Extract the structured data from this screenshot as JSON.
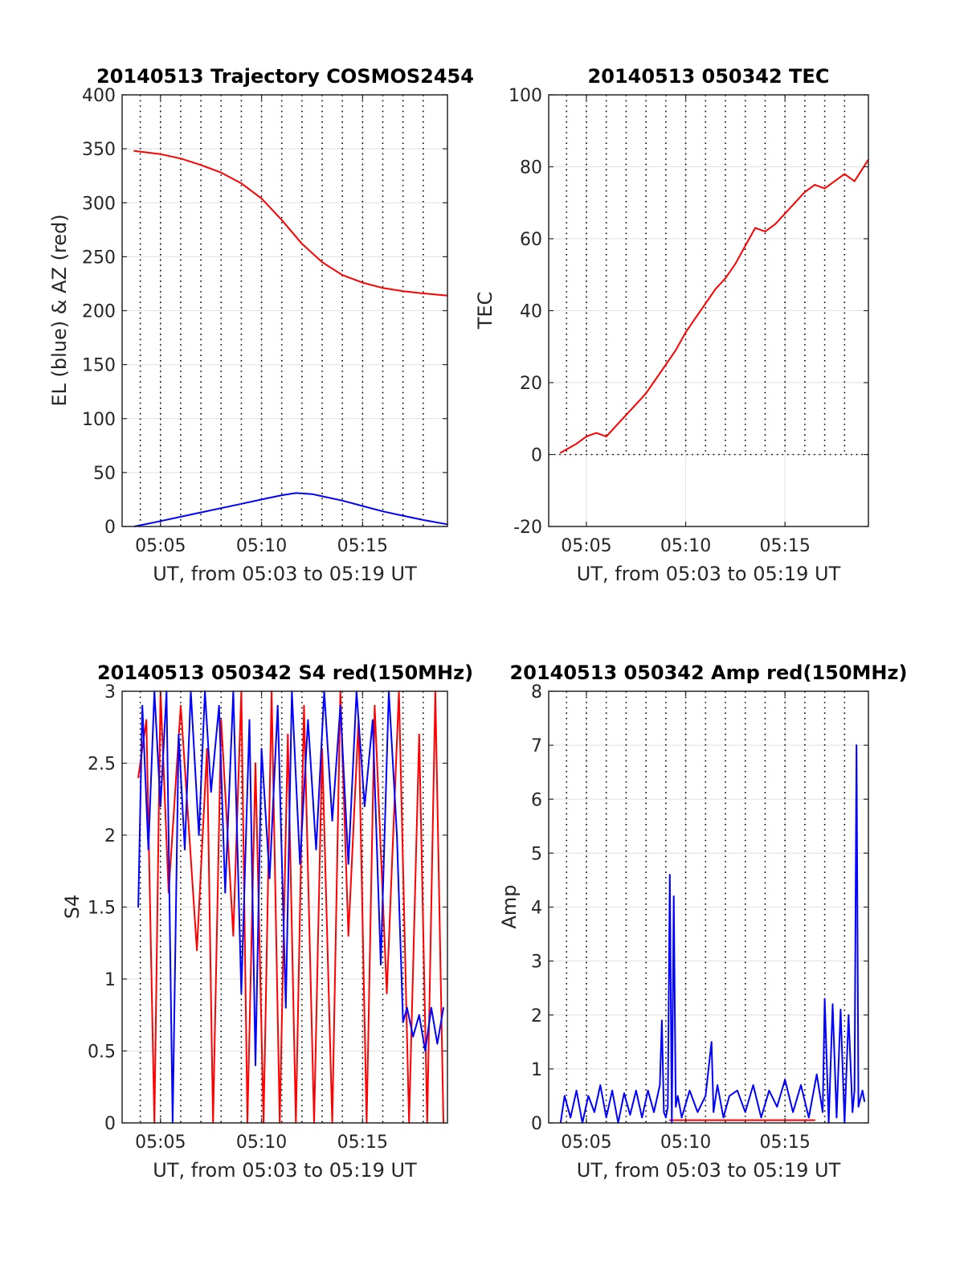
{
  "colors": {
    "el": "#0000ff",
    "az": "#ff0000",
    "tec": "#ff0000",
    "s4_red": "#ff0000",
    "s4_blue": "#0000ff",
    "amp_red": "#ff0000",
    "amp_blue": "#0000ff",
    "grid": "#e0e0e0",
    "axis": "#262626"
  },
  "chart_data": [
    {
      "type": "line",
      "title": "20140513 Trajectory COSMOS2454",
      "xlabel": "UT, from 05:03 to 05:19 UT",
      "ylabel": "EL (blue) & AZ (red)",
      "xlim": [
        3.1,
        19.2
      ],
      "ylim": [
        0,
        400
      ],
      "x_ticks": [
        5,
        10,
        15
      ],
      "x_tick_labels": [
        "05:05",
        "05:10",
        "05:15"
      ],
      "y_ticks": [
        0,
        50,
        100,
        150,
        200,
        250,
        300,
        350,
        400
      ],
      "y_tick_labels": [
        "0",
        "50",
        "100",
        "150",
        "200",
        "250",
        "300",
        "350",
        "400"
      ],
      "minute_grid": [
        4,
        5,
        6,
        7,
        8,
        9,
        10,
        11,
        12,
        13,
        14,
        15,
        16,
        17,
        18
      ],
      "grid": true,
      "series": [
        {
          "color_key": "az",
          "x": [
            3.7,
            5,
            6,
            7,
            8,
            9,
            10,
            11,
            12,
            13,
            14,
            15,
            16,
            17,
            18,
            19.2
          ],
          "values": [
            348,
            345,
            341,
            335,
            328,
            318,
            304,
            284,
            262,
            245,
            233,
            226,
            221,
            218,
            216,
            214
          ]
        },
        {
          "color_key": "el",
          "x": [
            3.7,
            5,
            6,
            7,
            8,
            9,
            10,
            11,
            11.7,
            12.5,
            13,
            14,
            15,
            16,
            17,
            18,
            19.2
          ],
          "values": [
            0,
            5,
            9,
            13,
            17,
            21,
            25,
            29,
            31,
            30,
            28,
            24,
            19,
            14,
            10,
            6,
            2
          ]
        }
      ]
    },
    {
      "type": "line",
      "title": "20140513 050342 TEC",
      "xlabel": "UT, from 05:03 to 05:19 UT",
      "ylabel": "TEC",
      "xlim": [
        3.1,
        19.2
      ],
      "ylim": [
        -20,
        100
      ],
      "x_ticks": [
        5,
        10,
        15
      ],
      "x_tick_labels": [
        "05:05",
        "05:10",
        "05:15"
      ],
      "y_ticks": [
        -20,
        0,
        20,
        40,
        60,
        80,
        100
      ],
      "y_tick_labels": [
        "-20",
        "0",
        "20",
        "40",
        "60",
        "80",
        "100"
      ],
      "minute_grid": [
        4,
        5,
        6,
        7,
        8,
        9,
        10,
        11,
        12,
        13,
        14,
        15,
        16,
        17,
        18
      ],
      "dotted_grid_above": 0,
      "grid": true,
      "series": [
        {
          "color_key": "tec",
          "x": [
            3.7,
            4.5,
            5,
            5.5,
            6,
            6.5,
            7,
            7.5,
            8,
            8.5,
            9,
            9.5,
            10,
            10.5,
            11,
            11.5,
            12,
            12.5,
            13,
            13.5,
            14,
            14.5,
            15,
            15.5,
            16,
            16.5,
            17,
            17.5,
            18,
            18.5,
            19.2
          ],
          "values": [
            0.5,
            3,
            5,
            6,
            5,
            8,
            11,
            14,
            17,
            21,
            25,
            29,
            34,
            38,
            42,
            46,
            49,
            53,
            58,
            63,
            62,
            64,
            67,
            70,
            73,
            75,
            74,
            76,
            78,
            76,
            82
          ]
        }
      ]
    },
    {
      "type": "line",
      "title": "20140513 050342 S4 red(150MHz)",
      "xlabel": "UT, from 05:03 to 05:19 UT",
      "ylabel": "S4",
      "xlim": [
        3.1,
        19.2
      ],
      "ylim": [
        0,
        3
      ],
      "x_ticks": [
        5,
        10,
        15
      ],
      "x_tick_labels": [
        "05:05",
        "05:10",
        "05:15"
      ],
      "y_ticks": [
        0,
        0.5,
        1,
        1.5,
        2,
        2.5,
        3
      ],
      "y_tick_labels": [
        "0",
        "0.5",
        "1",
        "1.5",
        "2",
        "2.5",
        "3"
      ],
      "minute_grid": [
        4,
        5,
        6,
        7,
        8,
        9,
        10,
        11,
        12,
        13,
        14,
        15,
        16,
        17,
        18
      ],
      "grid": true,
      "series": [
        {
          "color_key": "s4_red",
          "x": [
            3.9,
            4.3,
            4.7,
            5.0,
            5.4,
            6.0,
            6.8,
            7.3,
            7.6,
            8.0,
            8.6,
            9.0,
            9.3,
            9.7,
            10.1,
            10.5,
            10.9,
            11.3,
            11.7,
            12.1,
            12.6,
            13.0,
            13.5,
            13.9,
            14.3,
            14.8,
            15.2,
            15.6,
            16.2,
            16.8,
            17.3,
            17.8,
            18.2,
            18.6,
            19.0
          ],
          "values": [
            2.4,
            2.8,
            0.0,
            3.0,
            1.6,
            2.9,
            1.2,
            2.6,
            0.0,
            2.8,
            1.3,
            3.0,
            0.0,
            2.5,
            0.0,
            3.0,
            0.0,
            2.7,
            0.0,
            2.9,
            0.0,
            2.6,
            0.0,
            3.0,
            1.3,
            2.8,
            0.0,
            2.9,
            0.9,
            3.0,
            0.0,
            2.7,
            0.0,
            3.0,
            0.0
          ]
        },
        {
          "color_key": "s4_blue",
          "x": [
            3.9,
            4.1,
            4.4,
            4.7,
            5.0,
            5.3,
            5.6,
            5.9,
            6.2,
            6.5,
            6.9,
            7.2,
            7.5,
            7.9,
            8.2,
            8.6,
            9.0,
            9.4,
            9.7,
            10.0,
            10.4,
            10.8,
            11.2,
            11.5,
            11.9,
            12.3,
            12.7,
            13.1,
            13.5,
            13.9,
            14.3,
            14.7,
            15.1,
            15.5,
            15.9,
            16.3,
            16.7,
            17.0,
            17.2,
            17.5,
            17.8,
            18.1,
            18.4,
            18.7,
            19.0
          ],
          "values": [
            1.5,
            2.9,
            1.9,
            3.0,
            2.2,
            3.0,
            0.0,
            2.7,
            1.9,
            3.0,
            2.0,
            3.0,
            2.3,
            2.9,
            1.6,
            3.0,
            0.9,
            2.8,
            0.4,
            2.6,
            1.7,
            2.9,
            0.8,
            3.0,
            1.8,
            2.8,
            1.9,
            3.0,
            2.1,
            2.9,
            1.8,
            3.0,
            2.2,
            2.8,
            1.1,
            3.0,
            2.0,
            0.7,
            0.8,
            0.6,
            0.75,
            0.5,
            0.8,
            0.55,
            0.8
          ]
        }
      ]
    },
    {
      "type": "line",
      "title": "20140513 050342 Amp red(150MHz)",
      "xlabel": "UT, from 05:03 to 05:19 UT",
      "ylabel": "Amp",
      "xlim": [
        3.1,
        19.2
      ],
      "ylim": [
        0,
        8
      ],
      "x_ticks": [
        5,
        10,
        15
      ],
      "x_tick_labels": [
        "05:05",
        "05:10",
        "05:15"
      ],
      "y_ticks": [
        0,
        1,
        2,
        3,
        4,
        5,
        6,
        7,
        8
      ],
      "y_tick_labels": [
        "0",
        "1",
        "2",
        "3",
        "4",
        "5",
        "6",
        "7",
        "8"
      ],
      "minute_grid": [
        4,
        5,
        6,
        7,
        8,
        9,
        10,
        11,
        12,
        13,
        14,
        15,
        16,
        17,
        18
      ],
      "grid": true,
      "series": [
        {
          "color_key": "amp_red",
          "x": [
            9.2,
            9.4,
            11.3,
            16.5
          ],
          "values": [
            0.05,
            0.05,
            0.05,
            0.05
          ]
        },
        {
          "color_key": "amp_blue",
          "x": [
            3.7,
            3.9,
            4.2,
            4.5,
            4.8,
            5.1,
            5.4,
            5.7,
            6.0,
            6.3,
            6.6,
            6.9,
            7.2,
            7.5,
            7.8,
            8.1,
            8.4,
            8.7,
            8.8,
            8.9,
            9.0,
            9.1,
            9.2,
            9.3,
            9.4,
            9.5,
            9.6,
            9.8,
            10.2,
            10.6,
            11.0,
            11.3,
            11.4,
            11.6,
            11.9,
            12.2,
            12.6,
            13.0,
            13.4,
            13.8,
            14.2,
            14.6,
            15.0,
            15.4,
            15.8,
            16.2,
            16.6,
            16.9,
            17.0,
            17.2,
            17.4,
            17.6,
            17.8,
            18.0,
            18.2,
            18.4,
            18.5,
            18.6,
            18.7,
            18.9,
            19.0
          ],
          "values": [
            0.0,
            0.5,
            0.1,
            0.6,
            0.0,
            0.5,
            0.2,
            0.7,
            0.1,
            0.6,
            0.0,
            0.55,
            0.15,
            0.6,
            0.1,
            0.6,
            0.2,
            0.7,
            1.9,
            0.2,
            0.1,
            0.3,
            4.6,
            0.0,
            4.2,
            0.3,
            0.5,
            0.1,
            0.6,
            0.2,
            0.5,
            1.5,
            0.2,
            0.7,
            0.1,
            0.5,
            0.6,
            0.2,
            0.7,
            0.1,
            0.6,
            0.3,
            0.8,
            0.2,
            0.7,
            0.1,
            0.9,
            0.2,
            2.3,
            0.0,
            2.2,
            0.1,
            2.1,
            0.0,
            2.0,
            0.2,
            0.6,
            7.0,
            0.3,
            0.6,
            0.4
          ]
        }
      ]
    }
  ]
}
